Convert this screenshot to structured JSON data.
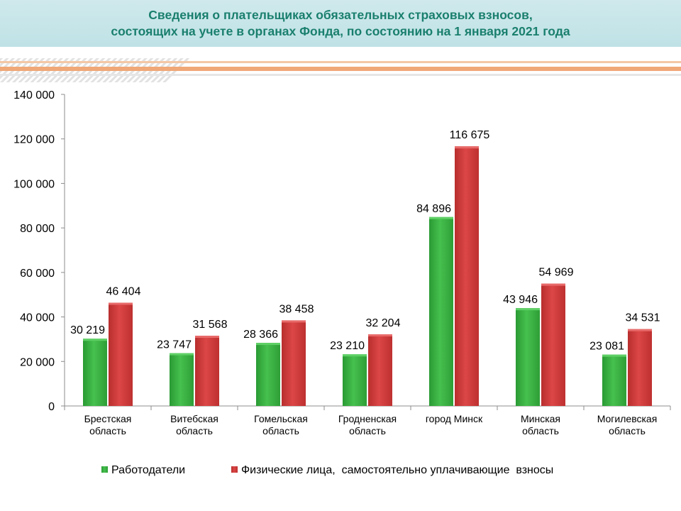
{
  "header": {
    "title_line1": "Сведения о плательщиках обязательных страховых взносов,",
    "title_line2": "состоящих на учете в органах Фонда, по состоянию на 1 января 2021 года"
  },
  "colors": {
    "header_bg": "#c4e4e8",
    "title": "#1a7f6e",
    "stripe_orange": "#f0a878",
    "stripe_gray": "#d9d9d9",
    "series_green": "#3cb043",
    "series_red": "#d23c3c"
  },
  "chart_data": {
    "type": "bar",
    "categories": [
      [
        "Брестская",
        "область"
      ],
      [
        "Витебская",
        "область"
      ],
      [
        "Гомельская",
        "область"
      ],
      [
        "Гродненская",
        "область"
      ],
      [
        "город Минск"
      ],
      [
        "Минская",
        "область"
      ],
      [
        "Могилевская",
        "область"
      ]
    ],
    "series": [
      {
        "name": "Работодатели",
        "values": [
          30219,
          23747,
          28366,
          23210,
          84896,
          43946,
          23081
        ],
        "labels": [
          "30 219",
          "23 747",
          "28 366",
          "23 210",
          "84 896",
          "43 946",
          "23 081"
        ],
        "color": "#3cb043"
      },
      {
        "name": "Физические лица,  самостоятельно уплачивающие  взносы",
        "values": [
          46404,
          31568,
          38458,
          32204,
          116675,
          54969,
          34531
        ],
        "labels": [
          "46 404",
          "31 568",
          "38 458",
          "32 204",
          "116 675",
          "54 969",
          "34 531"
        ],
        "color": "#d23c3c"
      }
    ],
    "ylim": [
      0,
      140000
    ],
    "yticks": [
      0,
      20000,
      40000,
      60000,
      80000,
      100000,
      120000,
      140000
    ],
    "ytick_labels": [
      "0",
      "20 000",
      "40 000",
      "60 000",
      "80 000",
      "100 000",
      "120 000",
      "140 000"
    ],
    "grid": false,
    "legend_position": "bottom"
  }
}
